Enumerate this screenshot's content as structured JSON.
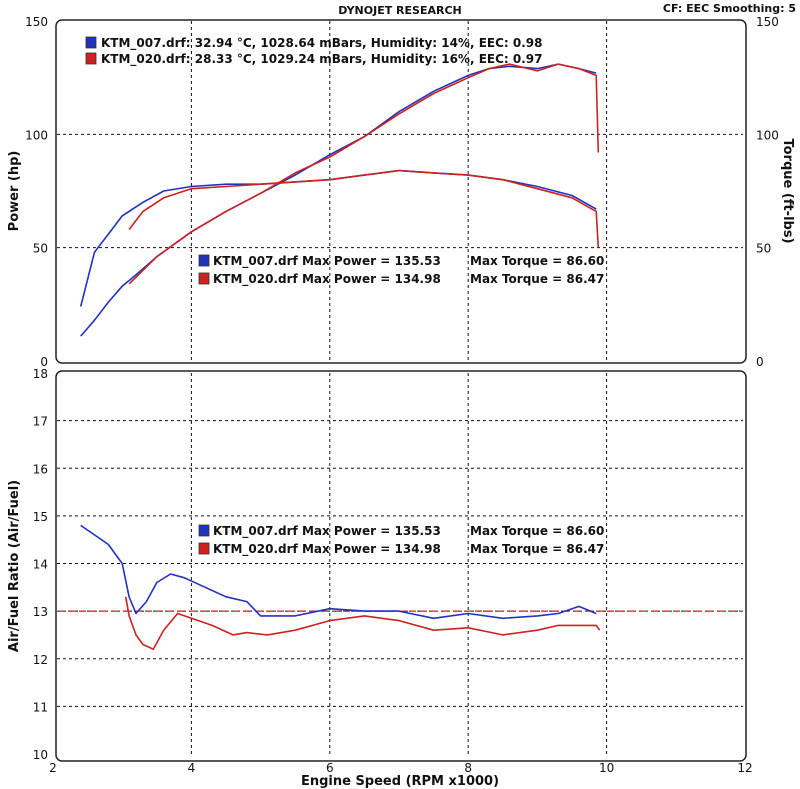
{
  "header": {
    "title": "DYNOJET RESEARCH",
    "correction": "CF: EEC  Smoothing: 5"
  },
  "colors": {
    "run1": "#2233bb",
    "run2": "#cc2222",
    "grid": "#111111",
    "frame_bg": "#ffffff"
  },
  "chart_data": [
    {
      "id": "power_torque",
      "type": "line",
      "xlim": [
        2,
        12
      ],
      "ylim": [
        0,
        150
      ],
      "y2lim": [
        0,
        150
      ],
      "xticks": [
        "2",
        "4",
        "6",
        "8",
        "10",
        "12"
      ],
      "yticks": [
        "0",
        "50",
        "100",
        "150"
      ],
      "y2ticks": [
        "0",
        "50",
        "100",
        "150"
      ],
      "ylabel": "Power (hp)",
      "y2label": "Torque (ft-lbs)",
      "conditions": [
        "KTM_007.drf: 32.94 °C, 1028.64 mBars, Humidity: 14%, EEC: 0.98",
        "KTM_020.drf: 28.33 °C, 1029.24 mBars, Humidity: 16%, EEC: 0.97"
      ],
      "legend": [
        {
          "name": "KTM_007.drf Max Power = 135.53",
          "torque": "Max Torque = 86.60",
          "color": "#2233bb"
        },
        {
          "name": "KTM_020.drf Max Power = 134.98",
          "torque": "Max Torque = 86.47",
          "color": "#cc2222"
        }
      ],
      "series": [
        {
          "name": "KTM_007 Power",
          "color": "#2233bb",
          "x": [
            2.4,
            2.6,
            2.8,
            3.0,
            3.2,
            3.5,
            4.0,
            4.5,
            5.0,
            5.5,
            6.0,
            6.5,
            7.0,
            7.5,
            8.0,
            8.3,
            8.6,
            9.0,
            9.3,
            9.6,
            9.85
          ],
          "y": [
            11,
            18,
            26,
            33,
            38,
            46,
            57,
            66,
            74,
            82,
            91,
            99,
            110,
            119,
            126,
            129,
            130,
            129,
            131,
            129,
            127
          ]
        },
        {
          "name": "KTM_020 Power",
          "color": "#cc2222",
          "x": [
            3.1,
            3.3,
            3.5,
            4.0,
            4.5,
            5.0,
            5.5,
            6.0,
            6.5,
            7.0,
            7.5,
            8.0,
            8.3,
            8.6,
            9.0,
            9.3,
            9.6,
            9.85,
            9.88
          ],
          "y": [
            34,
            40,
            46,
            57,
            66,
            74,
            83,
            90,
            99,
            109,
            118,
            125,
            129,
            131,
            128,
            131,
            129,
            126,
            92
          ]
        },
        {
          "name": "KTM_007 Torque",
          "color": "#2233bb",
          "x": [
            2.4,
            2.6,
            2.8,
            3.0,
            3.3,
            3.6,
            4.0,
            4.5,
            5.0,
            5.5,
            6.0,
            6.5,
            7.0,
            7.5,
            8.0,
            8.5,
            9.0,
            9.5,
            9.85
          ],
          "y": [
            24,
            48,
            56,
            64,
            70,
            75,
            77,
            78,
            78,
            79,
            80,
            82,
            84,
            83,
            82,
            80,
            77,
            73,
            67
          ]
        },
        {
          "name": "KTM_020 Torque",
          "color": "#cc2222",
          "x": [
            3.1,
            3.3,
            3.6,
            4.0,
            4.5,
            5.0,
            5.5,
            6.0,
            6.5,
            7.0,
            7.5,
            8.0,
            8.5,
            9.0,
            9.5,
            9.85,
            9.88
          ],
          "y": [
            58,
            66,
            72,
            76,
            77,
            78,
            79,
            80,
            82,
            84,
            83,
            82,
            80,
            76,
            72,
            66,
            50
          ]
        }
      ]
    },
    {
      "id": "air_fuel",
      "type": "line",
      "xlim": [
        2,
        12
      ],
      "ylim": [
        10,
        18
      ],
      "xticks": [
        "2",
        "4",
        "6",
        "8",
        "10",
        "12"
      ],
      "yticks": [
        "10",
        "11",
        "12",
        "13",
        "14",
        "15",
        "16",
        "17",
        "18"
      ],
      "xlabel": "Engine Speed (RPM x1000)",
      "ylabel": "Air/Fuel Ratio (Air/Fuel)",
      "reference_line": 13.0,
      "legend": [
        {
          "name": "KTM_007.drf Max Power = 135.53",
          "torque": "Max Torque = 86.60",
          "color": "#2233bb"
        },
        {
          "name": "KTM_020.drf Max Power = 134.98",
          "torque": "Max Torque = 86.47",
          "color": "#cc2222"
        }
      ],
      "series": [
        {
          "name": "KTM_007 AFR",
          "color": "#2233bb",
          "x": [
            2.4,
            2.6,
            2.8,
            3.0,
            3.1,
            3.2,
            3.35,
            3.5,
            3.7,
            3.9,
            4.2,
            4.5,
            4.8,
            5.0,
            5.5,
            6.0,
            6.5,
            7.0,
            7.5,
            8.0,
            8.5,
            9.0,
            9.3,
            9.6,
            9.85
          ],
          "y": [
            14.8,
            14.6,
            14.4,
            14.0,
            13.3,
            12.95,
            13.2,
            13.6,
            13.78,
            13.7,
            13.5,
            13.3,
            13.2,
            12.9,
            12.9,
            13.05,
            13.0,
            13.0,
            12.85,
            12.95,
            12.85,
            12.9,
            12.95,
            13.1,
            12.95
          ]
        },
        {
          "name": "KTM_020 AFR",
          "color": "#cc2222",
          "x": [
            3.05,
            3.1,
            3.2,
            3.3,
            3.45,
            3.6,
            3.8,
            4.0,
            4.3,
            4.6,
            4.8,
            5.1,
            5.5,
            6.0,
            6.5,
            7.0,
            7.5,
            8.0,
            8.5,
            9.0,
            9.3,
            9.6,
            9.85,
            9.9
          ],
          "y": [
            13.3,
            12.9,
            12.5,
            12.3,
            12.2,
            12.6,
            12.95,
            12.85,
            12.7,
            12.5,
            12.55,
            12.5,
            12.6,
            12.8,
            12.9,
            12.8,
            12.6,
            12.65,
            12.5,
            12.6,
            12.7,
            12.7,
            12.7,
            12.6
          ]
        }
      ]
    }
  ]
}
